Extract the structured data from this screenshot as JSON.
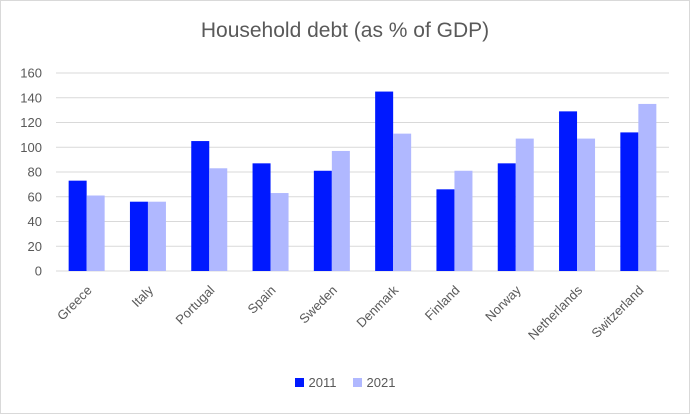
{
  "chart_data": {
    "type": "bar",
    "title": "Household debt (as % of GDP)",
    "categories": [
      "Greece",
      "Italy",
      "Portugal",
      "Spain",
      "Sweden",
      "Denmark",
      "Finland",
      "Norway",
      "Netherlands",
      "Switzerland"
    ],
    "series": [
      {
        "name": "2011",
        "color": "#0019ff",
        "values": [
          73,
          56,
          105,
          87,
          81,
          145,
          66,
          87,
          129,
          112
        ]
      },
      {
        "name": "2021",
        "color": "#b0b8ff",
        "values": [
          61,
          56,
          83,
          63,
          97,
          111,
          81,
          107,
          107,
          135
        ]
      }
    ],
    "xlabel": "",
    "ylabel": "",
    "ylim": [
      0,
      160
    ],
    "yticks": [
      0,
      20,
      40,
      60,
      80,
      100,
      120,
      140,
      160
    ],
    "grid": true,
    "legend_position": "bottom"
  }
}
